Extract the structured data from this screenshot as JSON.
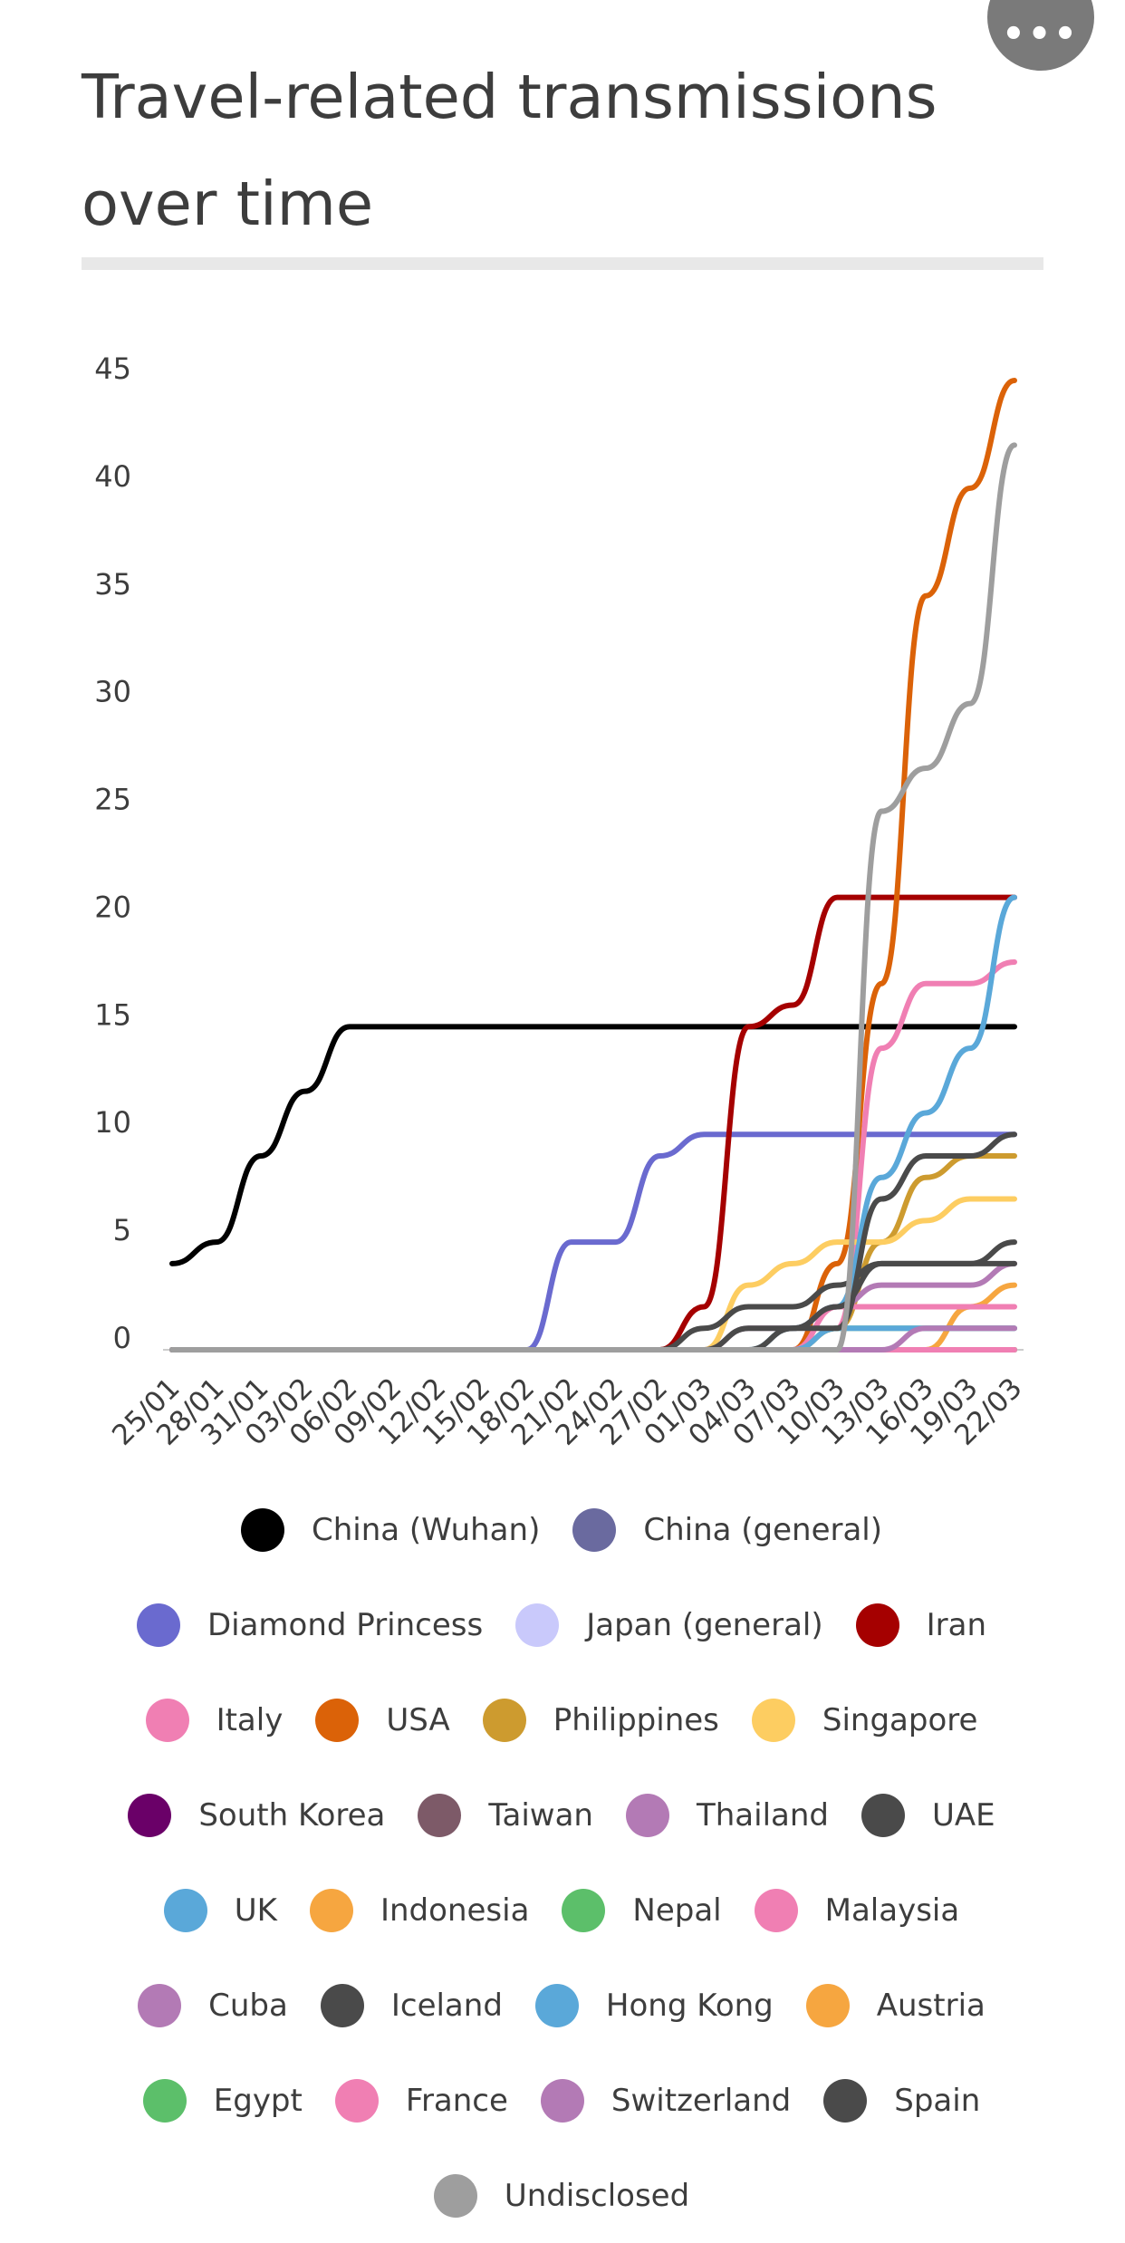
{
  "header": {
    "title": "Travel-related transmissions over time",
    "menu_icon": "more-horizontal-icon",
    "menu_label": "•••"
  },
  "chart_data": {
    "type": "line",
    "title": "Travel-related transmissions over time",
    "xlabel": "",
    "ylabel": "",
    "x": [
      "25/01",
      "28/01",
      "31/01",
      "03/02",
      "06/02",
      "09/02",
      "12/02",
      "15/02",
      "18/02",
      "21/02",
      "24/02",
      "27/02",
      "01/03",
      "04/03",
      "07/03",
      "10/03",
      "13/03",
      "16/03",
      "19/03",
      "22/03"
    ],
    "x_tick_labels": [
      "25/01",
      "28/01",
      "31/01",
      "03/02",
      "06/02",
      "09/02",
      "12/02",
      "15/02",
      "18/02",
      "21/02",
      "24/02",
      "27/02",
      "01/03",
      "04/03",
      "07/03",
      "10/03",
      "13/03",
      "16/03",
      "19/03",
      "22/03"
    ],
    "y_tick_labels": [
      "0",
      "5",
      "10",
      "15",
      "20",
      "25",
      "30",
      "35",
      "40",
      "45"
    ],
    "ylim": [
      0,
      45
    ],
    "grid": false,
    "legend_position": "bottom",
    "series": [
      {
        "name": "China (Wuhan)",
        "color": "#000000",
        "values": [
          4,
          5,
          9,
          12,
          15,
          15,
          15,
          15,
          15,
          15,
          15,
          15,
          15,
          15,
          15,
          15,
          15,
          15,
          15,
          15
        ]
      },
      {
        "name": "China (general)",
        "color": "#6a6a9f",
        "values": [
          0,
          0,
          0,
          0,
          0,
          0,
          0,
          0,
          0,
          0,
          0,
          0,
          0,
          0,
          0,
          0,
          0,
          0,
          0,
          0
        ]
      },
      {
        "name": "Diamond Princess",
        "color": "#6a6acf",
        "values": [
          0,
          0,
          0,
          0,
          0,
          0,
          0,
          0,
          0,
          5,
          5,
          9,
          10,
          10,
          10,
          10,
          10,
          10,
          10,
          10
        ]
      },
      {
        "name": "Japan (general)",
        "color": "#c9c9fb",
        "values": [
          0,
          0,
          0,
          0,
          0,
          0,
          0,
          0,
          0,
          0,
          0,
          0,
          0,
          0,
          0,
          0,
          0,
          0,
          0,
          0
        ]
      },
      {
        "name": "Iran",
        "color": "#a50000",
        "values": [
          0,
          0,
          0,
          0,
          0,
          0,
          0,
          0,
          0,
          0,
          0,
          0,
          2,
          15,
          16,
          21,
          21,
          21,
          21,
          21
        ]
      },
      {
        "name": "Italy",
        "color": "#f07fb3",
        "values": [
          0,
          0,
          0,
          0,
          0,
          0,
          0,
          0,
          0,
          0,
          0,
          0,
          0,
          0,
          0,
          1,
          14,
          17,
          17,
          18
        ]
      },
      {
        "name": "USA",
        "color": "#db6208",
        "values": [
          0,
          0,
          0,
          0,
          0,
          0,
          0,
          0,
          0,
          0,
          0,
          0,
          0,
          0,
          0,
          4,
          17,
          35,
          40,
          45
        ]
      },
      {
        "name": "Philippines",
        "color": "#cd9b2f",
        "values": [
          0,
          0,
          0,
          0,
          0,
          0,
          0,
          0,
          0,
          0,
          0,
          0,
          0,
          0,
          0,
          1,
          5,
          8,
          9,
          9
        ]
      },
      {
        "name": "Singapore",
        "color": "#fdcd61",
        "values": [
          0,
          0,
          0,
          0,
          0,
          0,
          0,
          0,
          0,
          0,
          0,
          0,
          0,
          3,
          4,
          5,
          5,
          6,
          7,
          7
        ]
      },
      {
        "name": "South Korea",
        "color": "#6a0068",
        "values": [
          0,
          0,
          0,
          0,
          0,
          0,
          0,
          0,
          0,
          0,
          0,
          0,
          0,
          0,
          0,
          0,
          0,
          0,
          0,
          0
        ]
      },
      {
        "name": "Taiwan",
        "color": "#7d5a68",
        "values": [
          0,
          0,
          0,
          0,
          0,
          0,
          0,
          0,
          0,
          0,
          0,
          0,
          0,
          0,
          0,
          0,
          0,
          0,
          0,
          0
        ]
      },
      {
        "name": "Thailand",
        "color": "#b37ab5",
        "values": [
          0,
          0,
          0,
          0,
          0,
          0,
          0,
          0,
          0,
          0,
          0,
          0,
          0,
          1,
          1,
          2,
          3,
          3,
          3,
          4
        ]
      },
      {
        "name": "UAE",
        "color": "#4a4a4a",
        "values": [
          0,
          0,
          0,
          0,
          0,
          0,
          0,
          0,
          0,
          0,
          0,
          0,
          1,
          2,
          2,
          3,
          4,
          4,
          4,
          5
        ]
      },
      {
        "name": "UK",
        "color": "#5aa8d9",
        "values": [
          0,
          0,
          0,
          0,
          0,
          0,
          0,
          0,
          0,
          0,
          0,
          0,
          0,
          0,
          1,
          2,
          8,
          11,
          14,
          21
        ]
      },
      {
        "name": "Indonesia",
        "color": "#f6a640",
        "values": [
          0,
          0,
          0,
          0,
          0,
          0,
          0,
          0,
          0,
          0,
          0,
          0,
          0,
          0,
          0,
          0,
          0,
          0,
          2,
          3
        ]
      },
      {
        "name": "Nepal",
        "color": "#5cbf6a",
        "values": [
          0,
          0,
          0,
          0,
          0,
          0,
          0,
          0,
          0,
          0,
          0,
          0,
          0,
          0,
          0,
          1,
          1,
          1,
          1,
          1
        ]
      },
      {
        "name": "Malaysia",
        "color": "#f07fb3",
        "values": [
          0,
          0,
          0,
          0,
          0,
          0,
          0,
          0,
          0,
          0,
          0,
          0,
          0,
          0,
          0,
          2,
          2,
          2,
          2,
          2
        ]
      },
      {
        "name": "Cuba",
        "color": "#b37ab5",
        "values": [
          0,
          0,
          0,
          0,
          0,
          0,
          0,
          0,
          0,
          0,
          0,
          0,
          0,
          0,
          0,
          0,
          0,
          0,
          0,
          0
        ]
      },
      {
        "name": "Iceland",
        "color": "#4a4a4a",
        "values": [
          0,
          0,
          0,
          0,
          0,
          0,
          0,
          0,
          0,
          0,
          0,
          0,
          0,
          1,
          1,
          2,
          4,
          4,
          4,
          4
        ]
      },
      {
        "name": "Hong Kong",
        "color": "#5aa8d9",
        "values": [
          0,
          0,
          0,
          0,
          0,
          0,
          0,
          0,
          0,
          0,
          0,
          0,
          0,
          0,
          0,
          1,
          1,
          1,
          1,
          1
        ]
      },
      {
        "name": "Austria",
        "color": "#f6a640",
        "values": [
          0,
          0,
          0,
          0,
          0,
          0,
          0,
          0,
          0,
          0,
          0,
          0,
          0,
          0,
          0,
          0,
          0,
          0,
          0,
          0
        ]
      },
      {
        "name": "Egypt",
        "color": "#5cbf6a",
        "values": [
          0,
          0,
          0,
          0,
          0,
          0,
          0,
          0,
          0,
          0,
          0,
          0,
          0,
          0,
          0,
          0,
          0,
          0,
          0,
          0
        ]
      },
      {
        "name": "France",
        "color": "#f07fb3",
        "values": [
          0,
          0,
          0,
          0,
          0,
          0,
          0,
          0,
          0,
          0,
          0,
          0,
          0,
          0,
          0,
          0,
          0,
          0,
          0,
          0
        ]
      },
      {
        "name": "Switzerland",
        "color": "#b37ab5",
        "values": [
          0,
          0,
          0,
          0,
          0,
          0,
          0,
          0,
          0,
          0,
          0,
          0,
          0,
          0,
          0,
          0,
          0,
          1,
          1,
          1
        ]
      },
      {
        "name": "Spain",
        "color": "#4a4a4a",
        "values": [
          0,
          0,
          0,
          0,
          0,
          0,
          0,
          0,
          0,
          0,
          0,
          0,
          0,
          0,
          1,
          1,
          7,
          9,
          9,
          10
        ]
      },
      {
        "name": "Undisclosed",
        "color": "#9e9e9e",
        "values": [
          0,
          0,
          0,
          0,
          0,
          0,
          0,
          0,
          0,
          0,
          0,
          0,
          0,
          0,
          0,
          0,
          25,
          27,
          30,
          42
        ]
      }
    ]
  }
}
